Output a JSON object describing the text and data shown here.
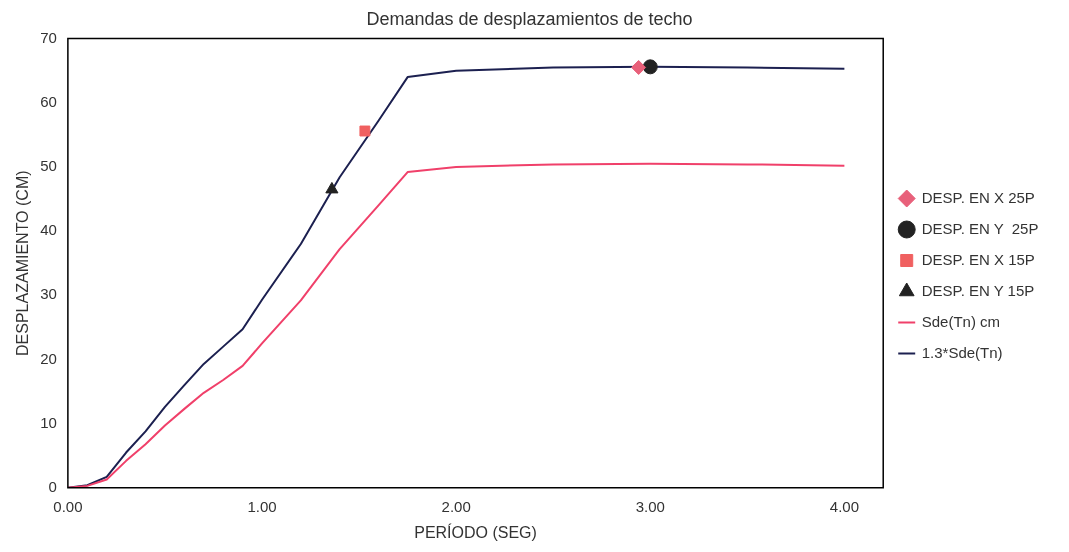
{
  "chart_data": {
    "type": "line",
    "title": "Demandas de desplazamientos de techo",
    "xlabel": "PERÍODO (SEG)",
    "ylabel": "DESPLAZAMIENTO (CM)",
    "xlim": [
      0,
      4.2
    ],
    "xticks": [
      {
        "value": 0,
        "label": "0.00"
      },
      {
        "value": 1,
        "label": "1.00"
      },
      {
        "value": 2,
        "label": "2.00"
      },
      {
        "value": 3,
        "label": "3.00"
      },
      {
        "value": 4,
        "label": "4.00"
      }
    ],
    "ylim": [
      0,
      70
    ],
    "yticks": [
      0,
      10,
      20,
      30,
      40,
      50,
      60,
      70
    ],
    "grid": false,
    "legend": "right",
    "series": [
      {
        "name": "DESP. EN X 25P",
        "type": "scatter",
        "marker": "diamond",
        "color": "#e8607a",
        "x": [
          2.94
        ],
        "values": [
          65.5
        ]
      },
      {
        "name": "DESP. EN Y  25P",
        "type": "scatter",
        "marker": "circle",
        "color": "#222222",
        "x": [
          3.0
        ],
        "values": [
          65.6
        ]
      },
      {
        "name": "DESP. EN X 15P",
        "type": "scatter",
        "marker": "square",
        "color": "#f06060",
        "x": [
          1.53
        ],
        "values": [
          55.6
        ]
      },
      {
        "name": "DESP. EN Y 15P",
        "type": "scatter",
        "marker": "triangle",
        "color": "#222222",
        "x": [
          1.36
        ],
        "values": [
          46.5
        ]
      },
      {
        "name": "Sde(Tn) cm",
        "type": "line",
        "marker": "none",
        "color": "#f0406a",
        "x": [
          0,
          0.1,
          0.2,
          0.3,
          0.4,
          0.5,
          0.6,
          0.7,
          0.8,
          0.9,
          1.0,
          1.2,
          1.4,
          1.6,
          1.75,
          2.0,
          2.5,
          3.0,
          3.5,
          4.0
        ],
        "values": [
          0,
          0.3,
          1.3,
          4.2,
          6.8,
          9.7,
          12.3,
          14.8,
          16.8,
          19.0,
          22.5,
          29.2,
          37.2,
          44.0,
          49.2,
          50.0,
          50.4,
          50.5,
          50.4,
          50.2
        ]
      },
      {
        "name": "1.3*Sde(Tn)",
        "type": "line",
        "marker": "none",
        "color": "#1c2050",
        "x": [
          0,
          0.1,
          0.2,
          0.3,
          0.4,
          0.5,
          0.6,
          0.7,
          0.8,
          0.9,
          1.0,
          1.2,
          1.4,
          1.6,
          1.75,
          2.0,
          2.5,
          3.0,
          3.5,
          4.0
        ],
        "values": [
          0,
          0.4,
          1.7,
          5.5,
          8.8,
          12.6,
          16.0,
          19.3,
          22.0,
          24.7,
          29.3,
          38.0,
          48.4,
          57.2,
          64.0,
          65.0,
          65.5,
          65.6,
          65.5,
          65.3
        ]
      }
    ]
  }
}
